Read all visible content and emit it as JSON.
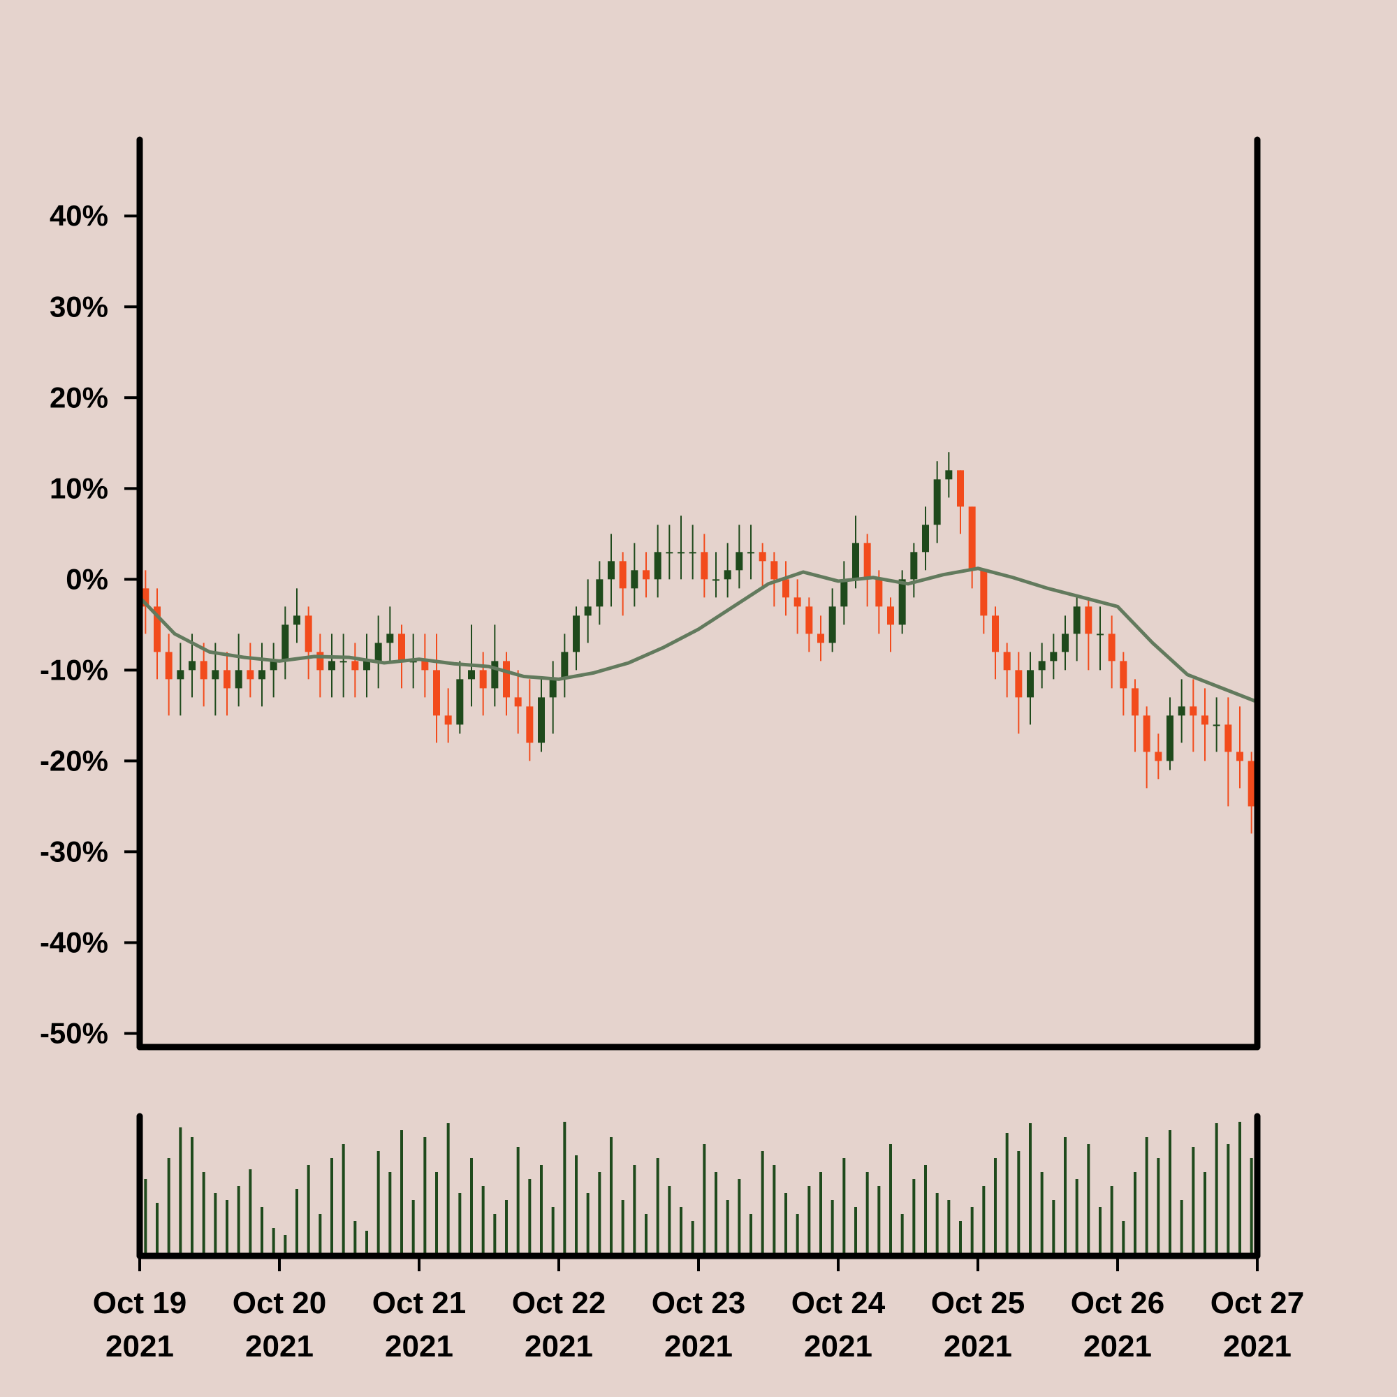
{
  "chart_data": {
    "type": "candlestick",
    "xlim": [
      0,
      96
    ],
    "xticks": [
      {
        "value": 0,
        "label": "Oct 19\n2021"
      },
      {
        "value": 12,
        "label": "Oct 20\n2021"
      },
      {
        "value": 24,
        "label": "Oct 21\n2021"
      },
      {
        "value": 36,
        "label": "Oct 22\n2021"
      },
      {
        "value": 48,
        "label": "Oct 23\n2021"
      },
      {
        "value": 60,
        "label": "Oct 24\n2021"
      },
      {
        "value": 72,
        "label": "Oct 25\n2021"
      },
      {
        "value": 84,
        "label": "Oct 26\n2021"
      },
      {
        "value": 96,
        "label": "Oct 27\n2021"
      }
    ],
    "ylim": [
      -51.5,
      48.4
    ],
    "yticks": [
      {
        "value": 40,
        "label": "40%"
      },
      {
        "value": 30,
        "label": "30%"
      },
      {
        "value": 20,
        "label": "20%"
      },
      {
        "value": 10,
        "label": "10%"
      },
      {
        "value": 0,
        "label": "0%"
      },
      {
        "value": -10,
        "label": "-10%"
      },
      {
        "value": -20,
        "label": "-20%"
      },
      {
        "value": -30,
        "label": "-30%"
      },
      {
        "value": -40,
        "label": "-40%"
      },
      {
        "value": -50,
        "label": "-50%"
      }
    ],
    "up_color": "#1f4a1c",
    "down_color": "#f24b1c",
    "open": [
      -1,
      -3,
      -8,
      -11,
      -10,
      -9,
      -11,
      -10,
      -12,
      -10,
      -11,
      -10,
      -9,
      -5,
      -4,
      -8,
      -10,
      -9,
      -9,
      -10,
      -9,
      -7,
      -6,
      -9,
      -9,
      -10,
      -15,
      -16,
      -11,
      -10,
      -12,
      -9,
      -13,
      -14,
      -18,
      -13,
      -11,
      -8,
      -4,
      -3,
      0,
      2,
      -1,
      1,
      0,
      3,
      3,
      3,
      3,
      0,
      0,
      1,
      3,
      3,
      2,
      0,
      -2,
      -3,
      -6,
      -7,
      -3,
      0,
      4,
      0,
      -3,
      -5,
      0,
      3,
      6,
      11,
      12,
      8,
      1,
      -4,
      -8,
      -10,
      -13,
      -10,
      -9,
      -8,
      -6,
      -3,
      -6,
      -6,
      -9,
      -12,
      -15,
      -19,
      -20,
      -15,
      -14,
      -15,
      -16,
      -16,
      -19,
      -20
    ],
    "high": [
      1,
      -1,
      -6,
      -7,
      -6,
      -7,
      -7,
      -8,
      -6,
      -7,
      -7,
      -7,
      -3,
      -1,
      -3,
      -6,
      -6,
      -6,
      -7,
      -6,
      -4,
      -3,
      -5,
      -6,
      -6,
      -6,
      -12,
      -9,
      -5,
      -8,
      -5,
      -8,
      -10,
      -11,
      -11,
      -9,
      -6,
      -3,
      0,
      2,
      5,
      3,
      4,
      3,
      6,
      6,
      7,
      6,
      5,
      3,
      4,
      6,
      6,
      4,
      3,
      2,
      0,
      -2,
      -4,
      -1,
      2,
      7,
      5,
      1,
      -2,
      1,
      4,
      8,
      13,
      14,
      12,
      8,
      1,
      -3,
      -7,
      -8,
      -8,
      -7,
      -6,
      -4,
      -2,
      -2,
      -3,
      -4,
      -8,
      -11,
      -14,
      -17,
      -13,
      -11,
      -11,
      -12,
      -13,
      -13,
      -14,
      -19
    ],
    "low": [
      -6,
      -11,
      -15,
      -15,
      -13,
      -14,
      -15,
      -15,
      -14,
      -13,
      -14,
      -13,
      -11,
      -7,
      -11,
      -13,
      -13,
      -13,
      -13,
      -13,
      -12,
      -9,
      -12,
      -12,
      -13,
      -18,
      -18,
      -17,
      -14,
      -15,
      -14,
      -15,
      -17,
      -20,
      -19,
      -17,
      -13,
      -10,
      -7,
      -5,
      -3,
      -4,
      -3,
      -2,
      -2,
      0,
      0,
      0,
      -2,
      -2,
      -2,
      -1,
      0,
      -1,
      -3,
      -4,
      -6,
      -8,
      -9,
      -8,
      -5,
      -1,
      -3,
      -6,
      -8,
      -6,
      -2,
      1,
      4,
      9,
      5,
      -1,
      -6,
      -11,
      -13,
      -17,
      -16,
      -12,
      -11,
      -10,
      -9,
      -10,
      -10,
      -12,
      -15,
      -19,
      -23,
      -22,
      -21,
      -18,
      -19,
      -20,
      -19,
      -25,
      -23,
      -28
    ],
    "close": [
      -3,
      -8,
      -11,
      -10,
      -9,
      -11,
      -10,
      -12,
      -10,
      -11,
      -10,
      -9,
      -5,
      -4,
      -8,
      -10,
      -9,
      -9,
      -10,
      -9,
      -7,
      -6,
      -9,
      -9,
      -10,
      -15,
      -16,
      -11,
      -10,
      -12,
      -9,
      -13,
      -14,
      -18,
      -13,
      -11,
      -8,
      -4,
      -3,
      0,
      2,
      -1,
      1,
      0,
      3,
      3,
      3,
      3,
      0,
      0,
      1,
      3,
      3,
      2,
      0,
      -2,
      -3,
      -6,
      -7,
      -3,
      0,
      4,
      0,
      -3,
      -5,
      0,
      3,
      6,
      11,
      12,
      8,
      1,
      -4,
      -8,
      -10,
      -13,
      -10,
      -9,
      -8,
      -6,
      -3,
      -6,
      -6,
      -9,
      -12,
      -15,
      -19,
      -20,
      -15,
      -14,
      -15,
      -16,
      -16,
      -19,
      -20,
      -25
    ],
    "moving_average": {
      "color": "#627a5d",
      "x": [
        0,
        3,
        6,
        9,
        12,
        15,
        18,
        21,
        24,
        27,
        30,
        33,
        36,
        39,
        42,
        45,
        48,
        51,
        54,
        57,
        60,
        63,
        66,
        69,
        72,
        75,
        78,
        81,
        84,
        87,
        90,
        93,
        96
      ],
      "values": [
        -2,
        -6,
        -8,
        -8.6,
        -9,
        -8.5,
        -8.6,
        -9.2,
        -8.8,
        -9.3,
        -9.6,
        -10.7,
        -11,
        -10.3,
        -9.2,
        -7.5,
        -5.5,
        -3,
        -0.5,
        0.8,
        -0.2,
        0.2,
        -0.5,
        0.5,
        1.2,
        0.2,
        -1,
        -2,
        -3,
        -7,
        -10.5,
        -12,
        -13.5
      ]
    },
    "volume": {
      "color": "#1f4a1c",
      "ylim": [
        0,
        100
      ],
      "values": [
        55,
        38,
        70,
        92,
        85,
        60,
        45,
        40,
        50,
        62,
        35,
        20,
        15,
        48,
        65,
        30,
        70,
        80,
        25,
        18,
        75,
        60,
        90,
        40,
        85,
        60,
        95,
        45,
        70,
        50,
        30,
        40,
        78,
        55,
        65,
        35,
        96,
        72,
        45,
        60,
        85,
        40,
        65,
        30,
        70,
        50,
        35,
        25,
        80,
        60,
        40,
        55,
        30,
        75,
        65,
        45,
        30,
        50,
        60,
        40,
        70,
        35,
        60,
        50,
        80,
        30,
        55,
        65,
        45,
        40,
        25,
        35,
        50,
        70,
        88,
        75,
        95,
        60,
        40,
        85,
        55,
        80,
        35,
        50,
        25,
        60,
        85,
        70,
        90,
        40,
        78,
        60,
        95,
        80,
        96,
        70
      ]
    }
  }
}
